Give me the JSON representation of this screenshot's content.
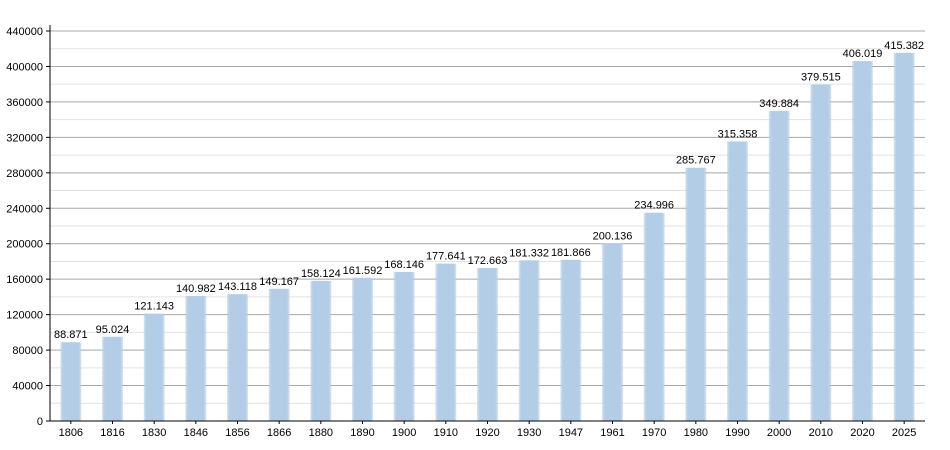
{
  "chart_data": {
    "type": "bar",
    "categories": [
      "1806",
      "1816",
      "1830",
      "1846",
      "1856",
      "1866",
      "1880",
      "1890",
      "1900",
      "1910",
      "1920",
      "1930",
      "1947",
      "1961",
      "1970",
      "1980",
      "1990",
      "2000",
      "2010",
      "2020",
      "2025"
    ],
    "values": [
      88871,
      95024,
      121143,
      140982,
      143118,
      149167,
      158124,
      161592,
      168146,
      177641,
      172663,
      181332,
      181866,
      200136,
      234996,
      285767,
      315358,
      349884,
      379515,
      406019,
      415382
    ],
    "value_labels": [
      "88.871",
      "95.024",
      "121.143",
      "140.982",
      "143.118",
      "149.167",
      "158.124",
      "161.592",
      "168.146",
      "177.641",
      "172.663",
      "181.332",
      "181.866",
      "200.136",
      "234.996",
      "285.767",
      "315.358",
      "349.884",
      "379.515",
      "406.019",
      "415.382"
    ],
    "y_ticks": [
      "0",
      "40000",
      "80000",
      "120000",
      "160000",
      "200000",
      "240000",
      "280000",
      "320000",
      "360000",
      "400000",
      "440000"
    ],
    "ylim": [
      0,
      440000
    ],
    "grid": true,
    "bar_color": "#b4cde6",
    "title": "",
    "xlabel": "",
    "ylabel": ""
  }
}
